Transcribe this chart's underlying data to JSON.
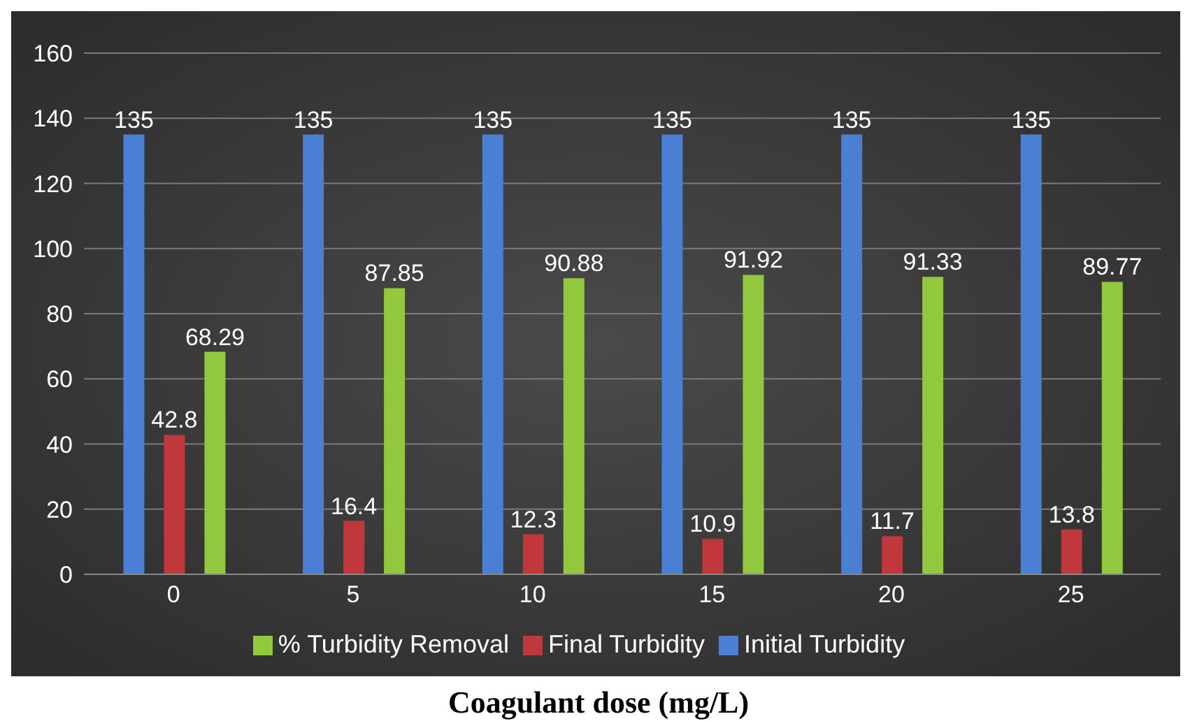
{
  "chart_data": {
    "type": "bar",
    "xlabel": "Coagulant dose (mg/L)",
    "categories": [
      "0",
      "5",
      "10",
      "15",
      "20",
      "25"
    ],
    "series": [
      {
        "name": "Initial Turbidity",
        "color": "#4a7fd4",
        "values": [
          135,
          135,
          135,
          135,
          135,
          135
        ]
      },
      {
        "name": "Final Turbidity",
        "color": "#c0383b",
        "values": [
          42.8,
          16.4,
          12.3,
          10.9,
          11.7,
          13.8
        ]
      },
      {
        "name": "% Turbidity Removal",
        "color": "#92c83e",
        "values": [
          68.29,
          87.85,
          90.88,
          91.92,
          91.33,
          89.77
        ]
      }
    ],
    "ylim": [
      0,
      160
    ],
    "yticks": [
      0,
      20,
      40,
      60,
      80,
      100,
      120,
      140,
      160
    ],
    "grid": "y",
    "legend": "bottom",
    "data_labels": true
  }
}
